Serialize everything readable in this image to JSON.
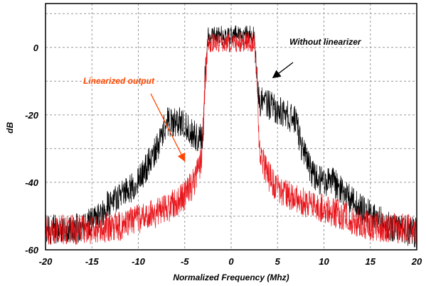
{
  "chart_data": {
    "type": "line",
    "title": "",
    "xlabel": "Normalized Frequency (Mhz)",
    "ylabel": "dB",
    "xlim": [
      -20,
      20
    ],
    "ylim": [
      -60,
      13
    ],
    "xticks": [
      -20,
      -15,
      -10,
      -5,
      0,
      5,
      10,
      15,
      20
    ],
    "yticks": [
      -60,
      -40,
      -20,
      0
    ],
    "grid": true,
    "legend": "none",
    "series": [
      {
        "name": "Without linearizer",
        "color": "#000000",
        "envelope": [
          [
            -20,
            -52
          ],
          [
            -17,
            -52
          ],
          [
            -15,
            -50
          ],
          [
            -13,
            -44
          ],
          [
            -10,
            -38
          ],
          [
            -8,
            -28
          ],
          [
            -7,
            -20
          ],
          [
            -5.5,
            -20
          ],
          [
            -4,
            -24
          ],
          [
            -3,
            -25
          ],
          [
            -2.8,
            -5
          ],
          [
            -2.5,
            5
          ],
          [
            0,
            5
          ],
          [
            2.5,
            5
          ],
          [
            2.8,
            -5
          ],
          [
            3,
            -14
          ],
          [
            4,
            -15
          ],
          [
            6,
            -18
          ],
          [
            7,
            -20
          ],
          [
            7.5,
            -27
          ],
          [
            9,
            -37
          ],
          [
            11,
            -38
          ],
          [
            12.5,
            -42
          ],
          [
            14,
            -46
          ],
          [
            17,
            -51
          ],
          [
            20,
            -53
          ]
        ]
      },
      {
        "name": "Linearized output",
        "color": "#e8141a",
        "envelope": [
          [
            -20,
            -52
          ],
          [
            -15,
            -52
          ],
          [
            -12,
            -51
          ],
          [
            -9,
            -48
          ],
          [
            -7,
            -46
          ],
          [
            -5,
            -42
          ],
          [
            -4,
            -38
          ],
          [
            -3.2,
            -32
          ],
          [
            -2.8,
            -8
          ],
          [
            -2.5,
            3
          ],
          [
            0,
            3
          ],
          [
            2.5,
            3
          ],
          [
            2.8,
            -5
          ],
          [
            3,
            -28
          ],
          [
            4,
            -36
          ],
          [
            5,
            -40
          ],
          [
            7,
            -43
          ],
          [
            9,
            -45
          ],
          [
            12,
            -48
          ],
          [
            15,
            -51
          ],
          [
            20,
            -52
          ]
        ]
      }
    ],
    "annotations": [
      {
        "text": "Without linearizer",
        "color": "#000000",
        "arrow_to": [
          4.5,
          -9
        ]
      },
      {
        "text": "Linearized output",
        "color": "#ff4500",
        "arrow_to": [
          -5,
          -32
        ]
      }
    ]
  }
}
